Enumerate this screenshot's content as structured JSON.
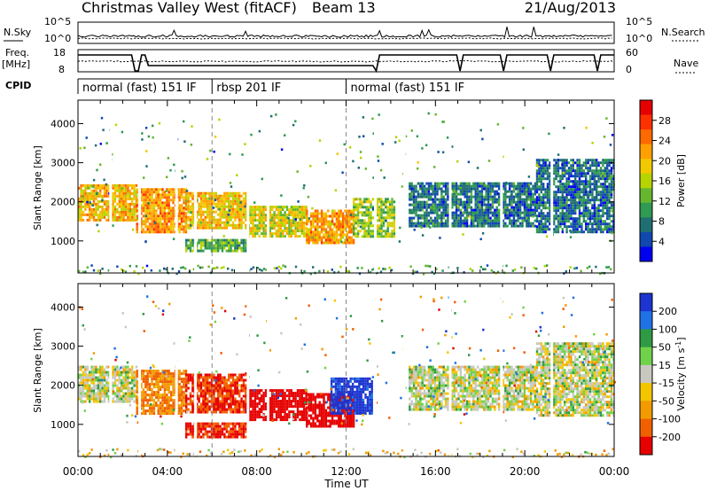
{
  "header": {
    "title": "Christmas Valley West (fitACF)",
    "beam": "Beam 13",
    "date": "21/Aug/2013"
  },
  "noise_panel": {
    "left_label": "N.Sky",
    "right_label": "N.Search",
    "left_ticks": [
      "10^5",
      "10^0"
    ],
    "right_ticks": [
      "10^5",
      "10^0"
    ]
  },
  "freq_panel": {
    "left_label_1": "Freq.",
    "left_label_2": "[MHz]",
    "right_label": "Nave",
    "left_ticks": [
      "18",
      "8"
    ],
    "right_ticks": [
      "60",
      "0"
    ]
  },
  "cpid_panel": {
    "label": "CPID",
    "segments": [
      {
        "name": "normal (fast) 151 IF",
        "start_h": 0.0,
        "end_h": 6.0
      },
      {
        "name": "rbsp 201 IF",
        "start_h": 6.0,
        "end_h": 12.0
      },
      {
        "name": "normal (fast) 151 IF",
        "start_h": 12.0,
        "end_h": 24.0
      }
    ]
  },
  "power_colorbar": {
    "title": "Power [dB]",
    "ticks": [
      "28",
      "24",
      "20",
      "16",
      "12",
      "8",
      "4"
    ],
    "colors": [
      "#e60000",
      "#ff3000",
      "#ff6a00",
      "#ffa000",
      "#f2c800",
      "#b6d400",
      "#66b62e",
      "#2e9a52",
      "#1f6f70",
      "#1048b0",
      "#0000f0"
    ]
  },
  "velocity_colorbar": {
    "title": "Velocity [m s^-1]",
    "ticks": [
      "200",
      "100",
      "50",
      "15",
      "-15",
      "-50",
      "-100",
      "-200"
    ],
    "colors": [
      "#1c34d0",
      "#1f72e6",
      "#2f9a44",
      "#6fd24a",
      "#c8c8c0",
      "#f2c500",
      "#f29a00",
      "#f06000",
      "#e60000"
    ]
  },
  "chart_data": [
    {
      "type": "heatmap",
      "title": "",
      "xlabel": "Time UT",
      "ylabel": "Slant Range [km]",
      "xlim": [
        0,
        24
      ],
      "ylim": [
        180,
        4600
      ],
      "x_ticks": [
        "00:00",
        "04:00",
        "08:00",
        "12:00",
        "16:00",
        "20:00",
        "00:00"
      ],
      "y_ticks": [
        1000,
        2000,
        3000,
        4000
      ],
      "colorbar": "Power [dB]",
      "bands": [
        {
          "t0": 0.0,
          "t1": 2.6,
          "r0": 1500,
          "r1": 2450,
          "level": 0.65
        },
        {
          "t0": 2.6,
          "t1": 4.8,
          "r0": 1250,
          "r1": 2350,
          "level": 0.72
        },
        {
          "t0": 4.8,
          "t1": 7.5,
          "r0": 1300,
          "r1": 2250,
          "level": 0.62
        },
        {
          "t0": 4.8,
          "t1": 7.5,
          "r0": 720,
          "r1": 1050,
          "level": 0.35
        },
        {
          "t0": 7.6,
          "t1": 10.2,
          "r0": 1100,
          "r1": 1900,
          "level": 0.55
        },
        {
          "t0": 10.2,
          "t1": 12.3,
          "r0": 950,
          "r1": 1800,
          "level": 0.7
        },
        {
          "t0": 12.3,
          "t1": 14.2,
          "r0": 1100,
          "r1": 2100,
          "level": 0.45
        },
        {
          "t0": 14.8,
          "t1": 20.5,
          "r0": 1350,
          "r1": 2500,
          "level": 0.2
        },
        {
          "t0": 20.5,
          "t1": 24.0,
          "r0": 1200,
          "r1": 3100,
          "level": 0.18
        }
      ]
    },
    {
      "type": "heatmap",
      "title": "",
      "xlabel": "Time UT",
      "ylabel": "Slant Range [km]",
      "xlim": [
        0,
        24
      ],
      "ylim": [
        180,
        4600
      ],
      "x_ticks": [
        "00:00",
        "04:00",
        "08:00",
        "12:00",
        "16:00",
        "20:00",
        "00:00"
      ],
      "y_ticks": [
        1000,
        2000,
        3000,
        4000
      ],
      "colorbar": "Velocity [m s^-1]",
      "bands": [
        {
          "t0": 0.0,
          "t1": 2.6,
          "r0": 1600,
          "r1": 2500,
          "velocity": 0
        },
        {
          "t0": 2.6,
          "t1": 4.8,
          "r0": 1300,
          "r1": 2400,
          "velocity": -70
        },
        {
          "t0": 4.8,
          "t1": 7.5,
          "r0": 1300,
          "r1": 2300,
          "velocity": -150
        },
        {
          "t0": 4.8,
          "t1": 7.5,
          "r0": 700,
          "r1": 1050,
          "velocity": -160
        },
        {
          "t0": 7.6,
          "t1": 10.2,
          "r0": 1100,
          "r1": 1900,
          "velocity": -190
        },
        {
          "t0": 10.2,
          "t1": 12.3,
          "r0": 950,
          "r1": 1800,
          "velocity": -200
        },
        {
          "t0": 11.3,
          "t1": 13.2,
          "r0": 1300,
          "r1": 2200,
          "velocity": 180
        },
        {
          "t0": 14.8,
          "t1": 20.5,
          "r0": 1350,
          "r1": 2500,
          "velocity": 0
        },
        {
          "t0": 20.5,
          "t1": 24.0,
          "r0": 1200,
          "r1": 3100,
          "velocity": 0
        }
      ]
    }
  ]
}
